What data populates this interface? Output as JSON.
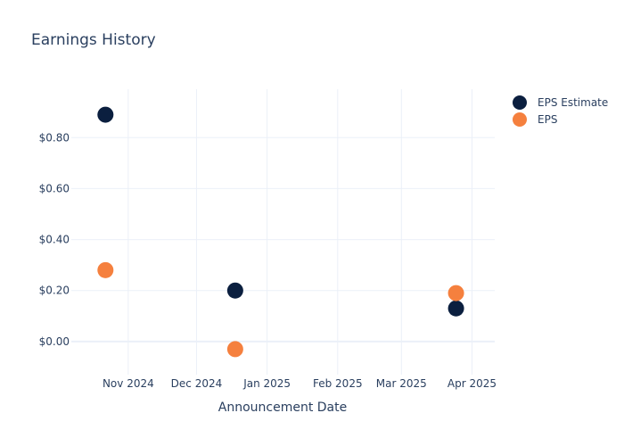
{
  "chart_data": {
    "type": "scatter",
    "title": "Earnings History",
    "xlabel": "Announcement Date",
    "ylabel": "",
    "x_range": [
      "2024-10-07",
      "2025-04-11"
    ],
    "ylim": [
      -0.13,
      0.99
    ],
    "x_ticks": [
      {
        "date": "2024-11-01",
        "label": "Nov 2024"
      },
      {
        "date": "2024-12-01",
        "label": "Dec 2024"
      },
      {
        "date": "2025-01-01",
        "label": "Jan 2025"
      },
      {
        "date": "2025-02-01",
        "label": "Feb 2025"
      },
      {
        "date": "2025-03-01",
        "label": "Mar 2025"
      },
      {
        "date": "2025-04-01",
        "label": "Apr 2025"
      }
    ],
    "y_ticks": [
      {
        "value": 0.0,
        "label": "$0.00"
      },
      {
        "value": 0.2,
        "label": "$0.20"
      },
      {
        "value": 0.4,
        "label": "$0.40"
      },
      {
        "value": 0.6,
        "label": "$0.60"
      },
      {
        "value": 0.8,
        "label": "$0.80"
      }
    ],
    "grid": true,
    "legend_position": "top-right",
    "series": [
      {
        "name": "EPS Estimate",
        "color": "#0b1f3f",
        "points": [
          {
            "x": "2024-10-22",
            "y": 0.89
          },
          {
            "x": "2024-12-18",
            "y": 0.2
          },
          {
            "x": "2025-03-25",
            "y": 0.13
          }
        ]
      },
      {
        "name": "EPS",
        "color": "#f5803e",
        "points": [
          {
            "x": "2024-10-22",
            "y": 0.28
          },
          {
            "x": "2024-12-18",
            "y": -0.03
          },
          {
            "x": "2025-03-25",
            "y": 0.19
          }
        ]
      }
    ]
  }
}
